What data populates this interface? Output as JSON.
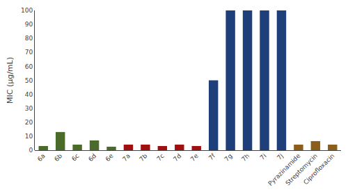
{
  "chart_data": {
    "type": "bar",
    "categories": [
      "6a",
      "6b",
      "6c",
      "6d",
      "6e",
      "7a",
      "7b",
      "7c",
      "7d",
      "7e",
      "7f",
      "7g",
      "7h",
      "7i",
      "7j",
      "Pyrazinamide",
      "Streptomycin",
      "Ciprofloxacin"
    ],
    "values": [
      3,
      13,
      4,
      7,
      2.5,
      4,
      4,
      3,
      4,
      3,
      50,
      100,
      100,
      100,
      100,
      4,
      6.5,
      4
    ],
    "colors": [
      "#4a6b2a",
      "#4a6b2a",
      "#4a6b2a",
      "#4a6b2a",
      "#4a6b2a",
      "#a01010",
      "#a01010",
      "#a01010",
      "#a01010",
      "#a01010",
      "#1e3f7a",
      "#1e3f7a",
      "#1e3f7a",
      "#1e3f7a",
      "#1e3f7a",
      "#8b5e1a",
      "#8b5e1a",
      "#8b5e1a"
    ],
    "ylabel": "MIC (μg/mL)",
    "ylim": [
      0,
      100
    ],
    "yticks": [
      0,
      10,
      20,
      30,
      40,
      50,
      60,
      70,
      80,
      90,
      100
    ],
    "grid": false
  }
}
